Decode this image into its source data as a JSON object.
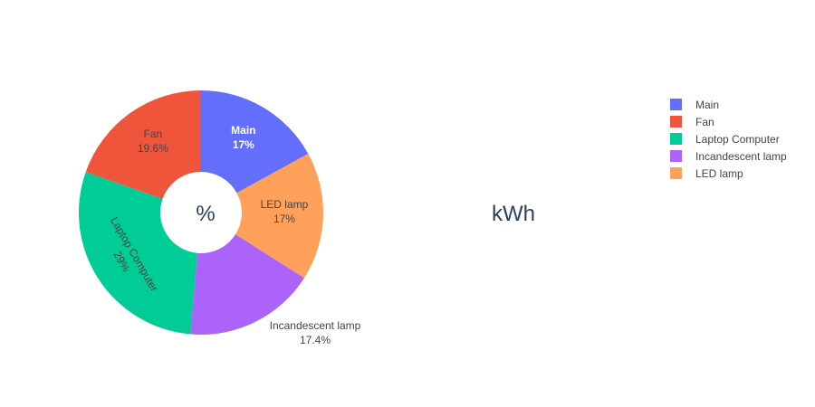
{
  "chart_data": {
    "type": "pie",
    "hole_label": "%",
    "side_label": "kWh",
    "slices": [
      {
        "label": "Main",
        "value": 17,
        "display": "17%",
        "color": "#636efa"
      },
      {
        "label": "LED lamp",
        "value": 17,
        "display": "17%",
        "color": "#ffa15a"
      },
      {
        "label": "Incandescent lamp",
        "value": 17.4,
        "display": "17.4%",
        "color": "#ab63fa"
      },
      {
        "label": "Laptop Computer",
        "value": 29,
        "display": "29%",
        "color": "#00cc96"
      },
      {
        "label": "Fan",
        "value": 19.6,
        "display": "19.6%",
        "color": "#ef553b"
      }
    ],
    "legend": [
      {
        "label": "Main",
        "color": "#636efa"
      },
      {
        "label": "Fan",
        "color": "#ef553b"
      },
      {
        "label": "Laptop Computer",
        "color": "#00cc96"
      },
      {
        "label": "Incandescent lamp",
        "color": "#ab63fa"
      },
      {
        "label": "LED lamp",
        "color": "#ffa15a"
      }
    ],
    "legend_position": "top-right"
  }
}
